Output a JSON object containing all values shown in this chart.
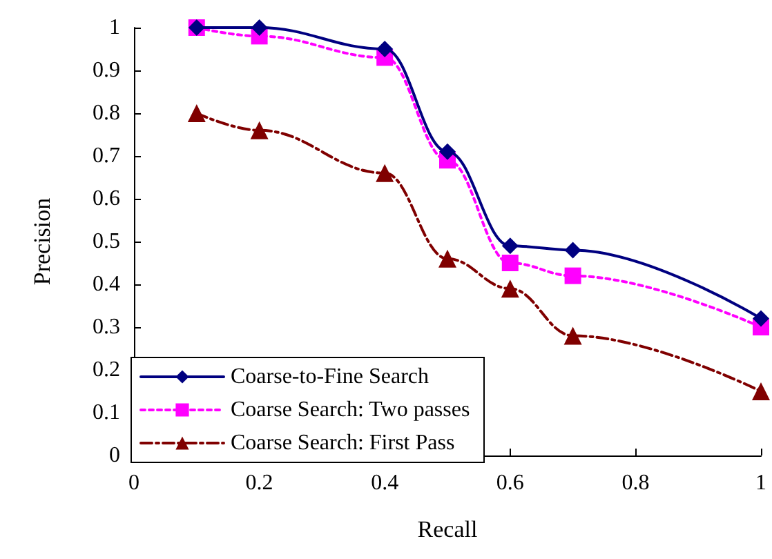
{
  "chart_data": {
    "type": "line",
    "xlabel": "Recall",
    "ylabel": "Precision",
    "x": [
      0.1,
      0.2,
      0.4,
      0.5,
      0.6,
      0.7,
      1.0
    ],
    "xlim": [
      0,
      1
    ],
    "xticks": [
      0,
      0.2,
      0.4,
      0.6,
      0.8,
      1
    ],
    "ylim": [
      0,
      1
    ],
    "yticks": [
      0,
      0.1,
      0.2,
      0.3,
      0.4,
      0.5,
      0.6,
      0.7,
      0.8,
      0.9,
      1
    ],
    "grid": false,
    "legend": "bottom left",
    "series": [
      {
        "name": "Coarse-to-Fine Search",
        "color": "#000080",
        "marker": "diamond",
        "line_style": "solid",
        "values": [
          1.0,
          1.0,
          0.95,
          0.71,
          0.49,
          0.48,
          0.32
        ]
      },
      {
        "name": "Coarse Search: Two passes",
        "color": "#ff00ff",
        "marker": "square",
        "line_style": "dotted",
        "values": [
          1.0,
          0.98,
          0.93,
          0.69,
          0.45,
          0.42,
          0.3
        ]
      },
      {
        "name": "Coarse Search: First Pass",
        "color": "#800000",
        "marker": "triangle",
        "line_style": "dashed",
        "values": [
          0.8,
          0.76,
          0.66,
          0.46,
          0.39,
          0.28,
          0.15
        ]
      }
    ]
  }
}
